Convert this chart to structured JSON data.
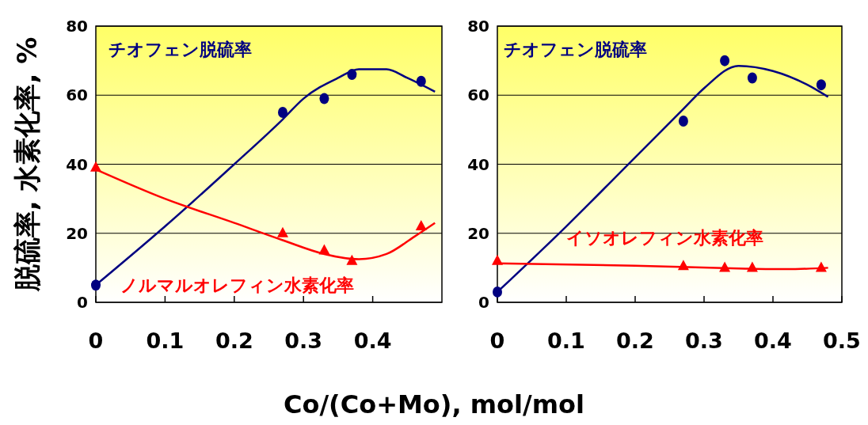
{
  "chart_data": [
    {
      "type": "scatter",
      "ylabel": "脱硫率, 水素化率, %",
      "xlim": [
        0,
        0.5
      ],
      "xticks": [
        0,
        0.1,
        0.2,
        0.3,
        0.4
      ],
      "ylim": [
        0,
        80
      ],
      "yticks": [
        0,
        20,
        40,
        60,
        80
      ],
      "grid": "y",
      "series": [
        {
          "type": "line",
          "color": "#000080",
          "marker": "none",
          "x": [
            0,
            0.1,
            0.2,
            0.27,
            0.3,
            0.35,
            0.38,
            0.42,
            0.45,
            0.49
          ],
          "values": [
            5,
            22,
            40,
            53,
            59,
            65,
            67.5,
            67.5,
            65,
            61
          ]
        },
        {
          "type": "line",
          "color": "#ff0000",
          "marker": "none",
          "x": [
            0,
            0.1,
            0.2,
            0.27,
            0.33,
            0.38,
            0.42,
            0.46,
            0.49
          ],
          "values": [
            38.5,
            30,
            23,
            18,
            14,
            12.5,
            14,
            19,
            23
          ]
        },
        {
          "name": "チオフェン脱硫率",
          "color": "#000080",
          "marker": "circle",
          "x": [
            0,
            0.27,
            0.33,
            0.37,
            0.47
          ],
          "values": [
            5,
            55,
            59,
            66,
            64
          ]
        },
        {
          "name": "ノルマルオレフィン水素化率",
          "color": "#ff0000",
          "marker": "triangle",
          "x": [
            0,
            0.27,
            0.33,
            0.37,
            0.47
          ],
          "values": [
            39,
            20,
            15,
            12,
            22
          ]
        }
      ]
    },
    {
      "type": "scatter",
      "xlabel": "Co/(Co+Mo), mol/mol",
      "xlim": [
        0,
        0.5
      ],
      "xticks": [
        0,
        0.1,
        0.2,
        0.3,
        0.4,
        0.5
      ],
      "ylim": [
        0,
        80
      ],
      "yticks": [
        0,
        20,
        40,
        60,
        80
      ],
      "grid": "y",
      "series": [
        {
          "type": "line",
          "color": "#000080",
          "marker": "none",
          "x": [
            0,
            0.1,
            0.2,
            0.27,
            0.3,
            0.35,
            0.4,
            0.45,
            0.48
          ],
          "values": [
            3,
            22,
            42,
            56,
            62,
            68.5,
            67,
            63,
            59.5
          ]
        },
        {
          "type": "line",
          "color": "#ff0000",
          "marker": "none",
          "x": [
            0,
            0.2,
            0.35,
            0.42,
            0.48
          ],
          "values": [
            11.3,
            10.6,
            9.8,
            9.6,
            10
          ]
        },
        {
          "name": "チオフェン脱硫率",
          "color": "#000080",
          "marker": "circle",
          "x": [
            0,
            0.27,
            0.33,
            0.37,
            0.47
          ],
          "values": [
            3,
            52.5,
            70,
            65,
            63
          ]
        },
        {
          "name": "イソオレフィン水素化率",
          "color": "#ff0000",
          "marker": "triangle",
          "x": [
            0,
            0.27,
            0.33,
            0.37,
            0.47
          ],
          "values": [
            12,
            10.5,
            10,
            10,
            10
          ]
        }
      ]
    }
  ]
}
